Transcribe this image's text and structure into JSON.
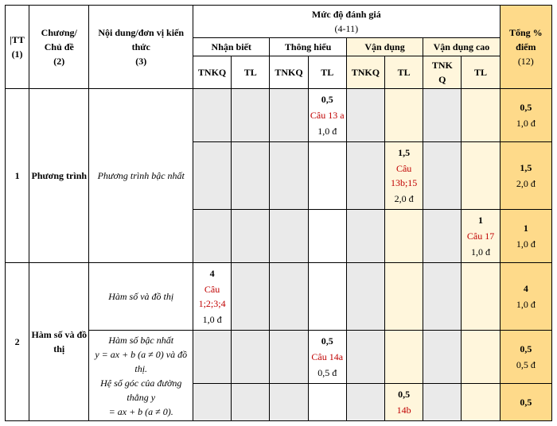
{
  "header": {
    "tt": "|TT",
    "tt_sub": "(1)",
    "chuong": "Chương/\nChủ đề",
    "chuong_sub": "(2)",
    "noidung": "Nội dung/đơn vị kiến thức",
    "noidung_sub": "(3)",
    "mucdo": "Mức độ đánh giá",
    "mucdo_sub": "(4-11)",
    "nb": "Nhận biết",
    "th": "Thông hiểu",
    "vd": "Vận dụng",
    "vdc": "Vận dụng cao",
    "tnkq": "TNKQ",
    "tnkq2": "TNK\nQ",
    "tl": "TL",
    "tong": "Tổng %\nđiểm",
    "tong_sub": "(12)"
  },
  "rows": [
    {
      "tt": "1",
      "chude": "Phương trình",
      "noidung": [
        "Phương trình bậc nhất"
      ],
      "noidung_italic": [
        true
      ],
      "subrows": [
        {
          "nb_tnkq": null,
          "nb_tl": null,
          "th_tnkq": null,
          "th_tl": {
            "pts": "0,5",
            "qn": "Câu 13 a",
            "scr": "1,0 đ"
          },
          "vd_tnkq": null,
          "vd_tl": null,
          "vdc_tnkq": null,
          "vdc_tl": null,
          "tong": {
            "pts": "0,5",
            "scr": "1,0 đ"
          }
        },
        {
          "nb_tnkq": null,
          "nb_tl": null,
          "th_tnkq": null,
          "th_tl": null,
          "vd_tnkq": null,
          "vd_tl": {
            "pts": "1,5",
            "qn": "Câu 13b;15",
            "scr": "2,0 đ"
          },
          "vdc_tnkq": null,
          "vdc_tl": null,
          "tong": {
            "pts": "1,5",
            "scr": "2,0 đ"
          }
        },
        {
          "nb_tnkq": null,
          "nb_tl": null,
          "th_tnkq": null,
          "th_tl": null,
          "vd_tnkq": null,
          "vd_tl": null,
          "vdc_tnkq": null,
          "vdc_tl": {
            "pts": "1",
            "qn": "Câu 17",
            "scr": "1,0 đ"
          },
          "tong": {
            "pts": "1",
            "scr": "1,0 đ"
          }
        }
      ]
    },
    {
      "tt": "2",
      "chude": "Hàm số và đồ thị",
      "noidung": [
        "Hàm số và đồ thị",
        "Hàm số bậc nhất\ny = ax + b (a ≠ 0) và đồ thị.\nHệ số góc của đường thẳng y\n= ax + b (a ≠ 0)."
      ],
      "noidung_italic": [
        true,
        true
      ],
      "subrows": [
        {
          "nb_tnkq": {
            "pts": "4",
            "qn": "Câu 1;2;3;4",
            "scr": "1,0 đ"
          },
          "nb_tl": null,
          "th_tnkq": null,
          "th_tl": null,
          "vd_tnkq": null,
          "vd_tl": null,
          "vdc_tnkq": null,
          "vdc_tl": null,
          "tong": {
            "pts": "4",
            "scr": "1,0 đ"
          },
          "content": 0
        },
        {
          "nb_tnkq": null,
          "nb_tl": null,
          "th_tnkq": null,
          "th_tl": {
            "pts": "0,5",
            "qn": "Câu 14a",
            "scr": "0,5 đ"
          },
          "vd_tnkq": null,
          "vd_tl": null,
          "vdc_tnkq": null,
          "vdc_tl": null,
          "tong": {
            "pts": "0,5",
            "scr": "0,5 đ"
          },
          "content": 1
        },
        {
          "nb_tnkq": null,
          "nb_tl": null,
          "th_tnkq": null,
          "th_tl": null,
          "vd_tnkq": null,
          "vd_tl": {
            "pts": "0,5",
            "qn": "14b",
            "scr": ""
          },
          "vdc_tnkq": null,
          "vdc_tl": null,
          "tong": {
            "pts": "0,5",
            "scr": ""
          }
        }
      ]
    }
  ],
  "colwidths": {
    "tt": 30,
    "chude": 75,
    "noidung": 130,
    "sub": 48,
    "tong": 65
  },
  "colors": {
    "yellow": "#feda8a",
    "lyellow": "#fff6dc",
    "gray": "#eaeaea"
  }
}
